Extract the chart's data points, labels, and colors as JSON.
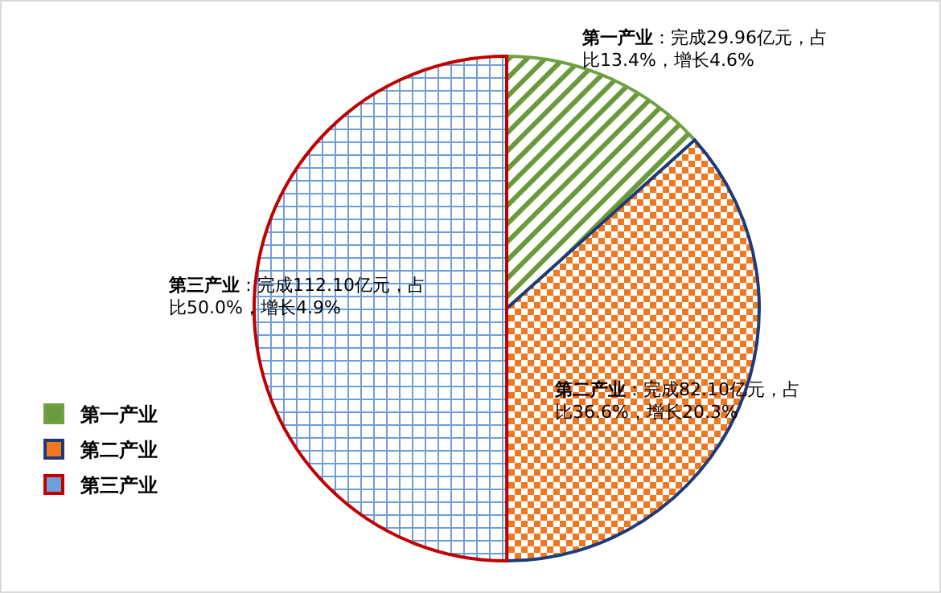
{
  "chart_data": {
    "type": "pie",
    "categories": [
      "第一产业",
      "第二产业",
      "第三产业"
    ],
    "values": [
      29.96,
      82.1,
      112.1
    ],
    "colors": [
      "#6a9a3c",
      "#f07820",
      "#6f9fd8"
    ],
    "value_labels": [
      "：完成29.96亿元，占比13.4%，增长4.6%",
      "：完成82.10亿元，占比36.6%，增长20.3%",
      "：完成112.10亿元，占比50.0%，增长4.9%"
    ],
    "legend": "bottom left"
  }
}
